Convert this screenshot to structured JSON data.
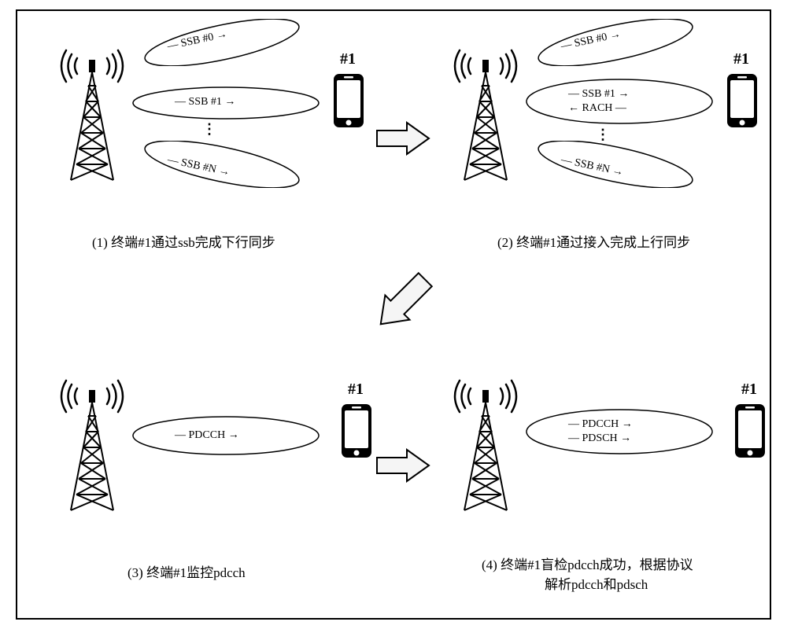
{
  "layout": {
    "frame_border_color": "#000000",
    "frame_border_width": 2,
    "background": "#ffffff"
  },
  "panel_1": {
    "caption": "(1) 终端#1通过ssb完成下行同步",
    "phone_label": "#1",
    "beams": {
      "top": {
        "label": "SSB #0",
        "arrows": [
          "right"
        ]
      },
      "middle": {
        "label": "SSB #1",
        "arrows": [
          "right"
        ]
      },
      "bottom": {
        "label": "SSB #N",
        "arrows": [
          "right"
        ]
      }
    },
    "show_dots": true
  },
  "panel_2": {
    "caption": "(2) 终端#1通过接入完成上行同步",
    "phone_label": "#1",
    "beams": {
      "top": {
        "label": "SSB #0",
        "arrows": [
          "right"
        ]
      },
      "middle": {
        "rows": [
          {
            "label": "SSB #1",
            "dir": "right"
          },
          {
            "label": "RACH",
            "dir": "left"
          }
        ]
      },
      "bottom": {
        "label": "SSB #N",
        "arrows": [
          "right"
        ]
      }
    },
    "show_dots": true
  },
  "panel_3": {
    "caption": "(3) 终端#1监控pdcch",
    "phone_label": "#1",
    "beams": {
      "middle": {
        "label": "PDCCH",
        "arrows": [
          "right"
        ]
      }
    }
  },
  "panel_4": {
    "caption_line1": "(4) 终端#1盲检pdcch成功，根据协议",
    "caption_line2": "解析pdcch和pdsch",
    "phone_label": "#1",
    "beams": {
      "middle": {
        "rows": [
          {
            "label": "PDCCH",
            "dir": "right"
          },
          {
            "label": "PDSCH",
            "dir": "right"
          }
        ]
      }
    }
  },
  "flow_arrow_style": {
    "stroke": "#000000",
    "stroke_width": 2,
    "fill": "#f5f5f5"
  },
  "beam_style": {
    "stroke": "#000000",
    "stroke_width": 1.5,
    "fill": "none",
    "tilt_up_deg": -12,
    "tilt_down_deg": 12
  },
  "text_style": {
    "caption_fontsize": 17,
    "beam_label_fontsize": 14,
    "phone_label_fontsize": 20
  }
}
